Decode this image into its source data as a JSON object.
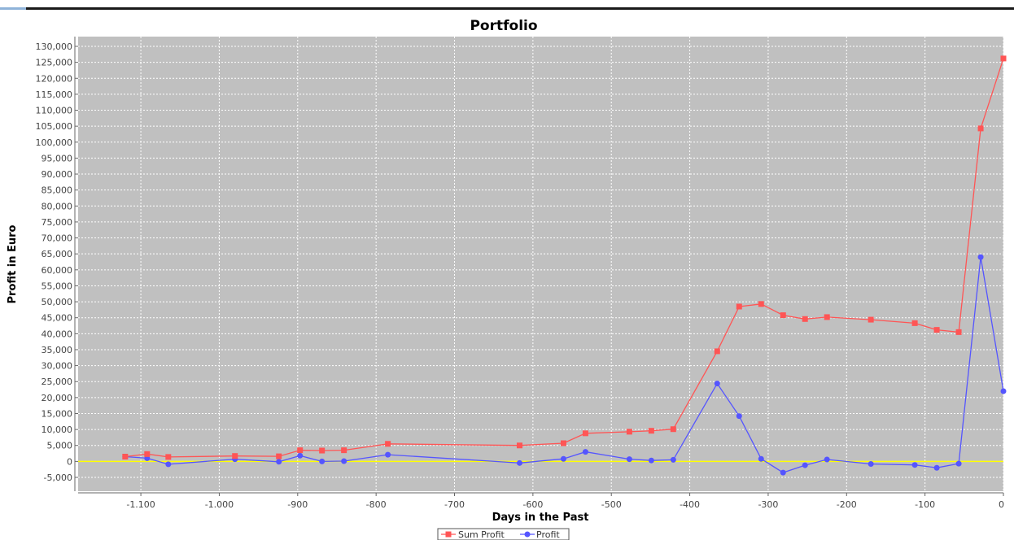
{
  "chart_data": {
    "type": "line",
    "title": "Portfolio",
    "xlabel": "Days in the Past",
    "ylabel": "Profit in Euro",
    "xlim": [
      -1180,
      0
    ],
    "ylim": [
      -5000,
      130000
    ],
    "x_ticks": [
      {
        "value": -1100,
        "label": "-1.100"
      },
      {
        "value": -1000,
        "label": "-1.000"
      },
      {
        "value": -900,
        "label": "-900"
      },
      {
        "value": -800,
        "label": "-800"
      },
      {
        "value": -700,
        "label": "-700"
      },
      {
        "value": -600,
        "label": "-600"
      },
      {
        "value": -500,
        "label": "-500"
      },
      {
        "value": -400,
        "label": "-400"
      },
      {
        "value": -300,
        "label": "-300"
      },
      {
        "value": -200,
        "label": "-200"
      },
      {
        "value": -100,
        "label": "-100"
      },
      {
        "value": 0,
        "label": "0"
      }
    ],
    "y_ticks": [
      {
        "value": 130000,
        "label": "130,000"
      },
      {
        "value": 125000,
        "label": "125,000"
      },
      {
        "value": 120000,
        "label": "120,000"
      },
      {
        "value": 115000,
        "label": "115,000"
      },
      {
        "value": 110000,
        "label": "110,000"
      },
      {
        "value": 105000,
        "label": "105,000"
      },
      {
        "value": 100000,
        "label": "100,000"
      },
      {
        "value": 95000,
        "label": "95,000"
      },
      {
        "value": 90000,
        "label": "90,000"
      },
      {
        "value": 85000,
        "label": "85,000"
      },
      {
        "value": 80000,
        "label": "80,000"
      },
      {
        "value": 75000,
        "label": "75,000"
      },
      {
        "value": 70000,
        "label": "70,000"
      },
      {
        "value": 65000,
        "label": "65,000"
      },
      {
        "value": 60000,
        "label": "60,000"
      },
      {
        "value": 55000,
        "label": "55,000"
      },
      {
        "value": 50000,
        "label": "50,000"
      },
      {
        "value": 45000,
        "label": "45,000"
      },
      {
        "value": 40000,
        "label": "40,000"
      },
      {
        "value": 35000,
        "label": "35,000"
      },
      {
        "value": 30000,
        "label": "30,000"
      },
      {
        "value": 25000,
        "label": "25,000"
      },
      {
        "value": 20000,
        "label": "20,000"
      },
      {
        "value": 15000,
        "label": "15,000"
      },
      {
        "value": 10000,
        "label": "10,000"
      },
      {
        "value": 5000,
        "label": "5,000"
      },
      {
        "value": 0,
        "label": "0"
      },
      {
        "value": -5000,
        "label": "-5,000"
      }
    ],
    "grid": true,
    "legend_position": "bottom-center",
    "background_color": "#c0c0c0",
    "zero_line_color": "#ffff00",
    "series": [
      {
        "name": "Sum Profit",
        "color": "#ff5555",
        "marker": "square",
        "points": [
          {
            "x": -1120,
            "y": 1500
          },
          {
            "x": -1092,
            "y": 2300
          },
          {
            "x": -1065,
            "y": 1400
          },
          {
            "x": -980,
            "y": 1700
          },
          {
            "x": -924,
            "y": 1600
          },
          {
            "x": -897,
            "y": 3500
          },
          {
            "x": -869,
            "y": 3400
          },
          {
            "x": -841,
            "y": 3500
          },
          {
            "x": -785,
            "y": 5500
          },
          {
            "x": -617,
            "y": 5000
          },
          {
            "x": -561,
            "y": 5700
          },
          {
            "x": -533,
            "y": 8800
          },
          {
            "x": -477,
            "y": 9300
          },
          {
            "x": -449,
            "y": 9600
          },
          {
            "x": -421,
            "y": 10100
          },
          {
            "x": -365,
            "y": 34500
          },
          {
            "x": -337,
            "y": 48500
          },
          {
            "x": -309,
            "y": 49300
          },
          {
            "x": -281,
            "y": 45800
          },
          {
            "x": -253,
            "y": 44600
          },
          {
            "x": -225,
            "y": 45200
          },
          {
            "x": -169,
            "y": 44400
          },
          {
            "x": -113,
            "y": 43300
          },
          {
            "x": -85,
            "y": 41200
          },
          {
            "x": -57,
            "y": 40500
          },
          {
            "x": -29,
            "y": 104300
          },
          {
            "x": 0,
            "y": 126200
          }
        ]
      },
      {
        "name": "Profit",
        "color": "#5555ff",
        "marker": "circle",
        "points": [
          {
            "x": -1120,
            "y": 1500
          },
          {
            "x": -1092,
            "y": 1000
          },
          {
            "x": -1065,
            "y": -900
          },
          {
            "x": -980,
            "y": 700
          },
          {
            "x": -924,
            "y": -100
          },
          {
            "x": -897,
            "y": 1800
          },
          {
            "x": -869,
            "y": 0
          },
          {
            "x": -841,
            "y": 100
          },
          {
            "x": -785,
            "y": 2100
          },
          {
            "x": -617,
            "y": -500
          },
          {
            "x": -561,
            "y": 800
          },
          {
            "x": -533,
            "y": 3000
          },
          {
            "x": -477,
            "y": 700
          },
          {
            "x": -449,
            "y": 300
          },
          {
            "x": -421,
            "y": 500
          },
          {
            "x": -365,
            "y": 24400
          },
          {
            "x": -337,
            "y": 14200
          },
          {
            "x": -309,
            "y": 800
          },
          {
            "x": -281,
            "y": -3500
          },
          {
            "x": -253,
            "y": -1200
          },
          {
            "x": -225,
            "y": 600
          },
          {
            "x": -169,
            "y": -800
          },
          {
            "x": -113,
            "y": -1100
          },
          {
            "x": -85,
            "y": -2000
          },
          {
            "x": -57,
            "y": -700
          },
          {
            "x": -29,
            "y": 64000
          },
          {
            "x": 0,
            "y": 22000
          }
        ]
      }
    ]
  }
}
